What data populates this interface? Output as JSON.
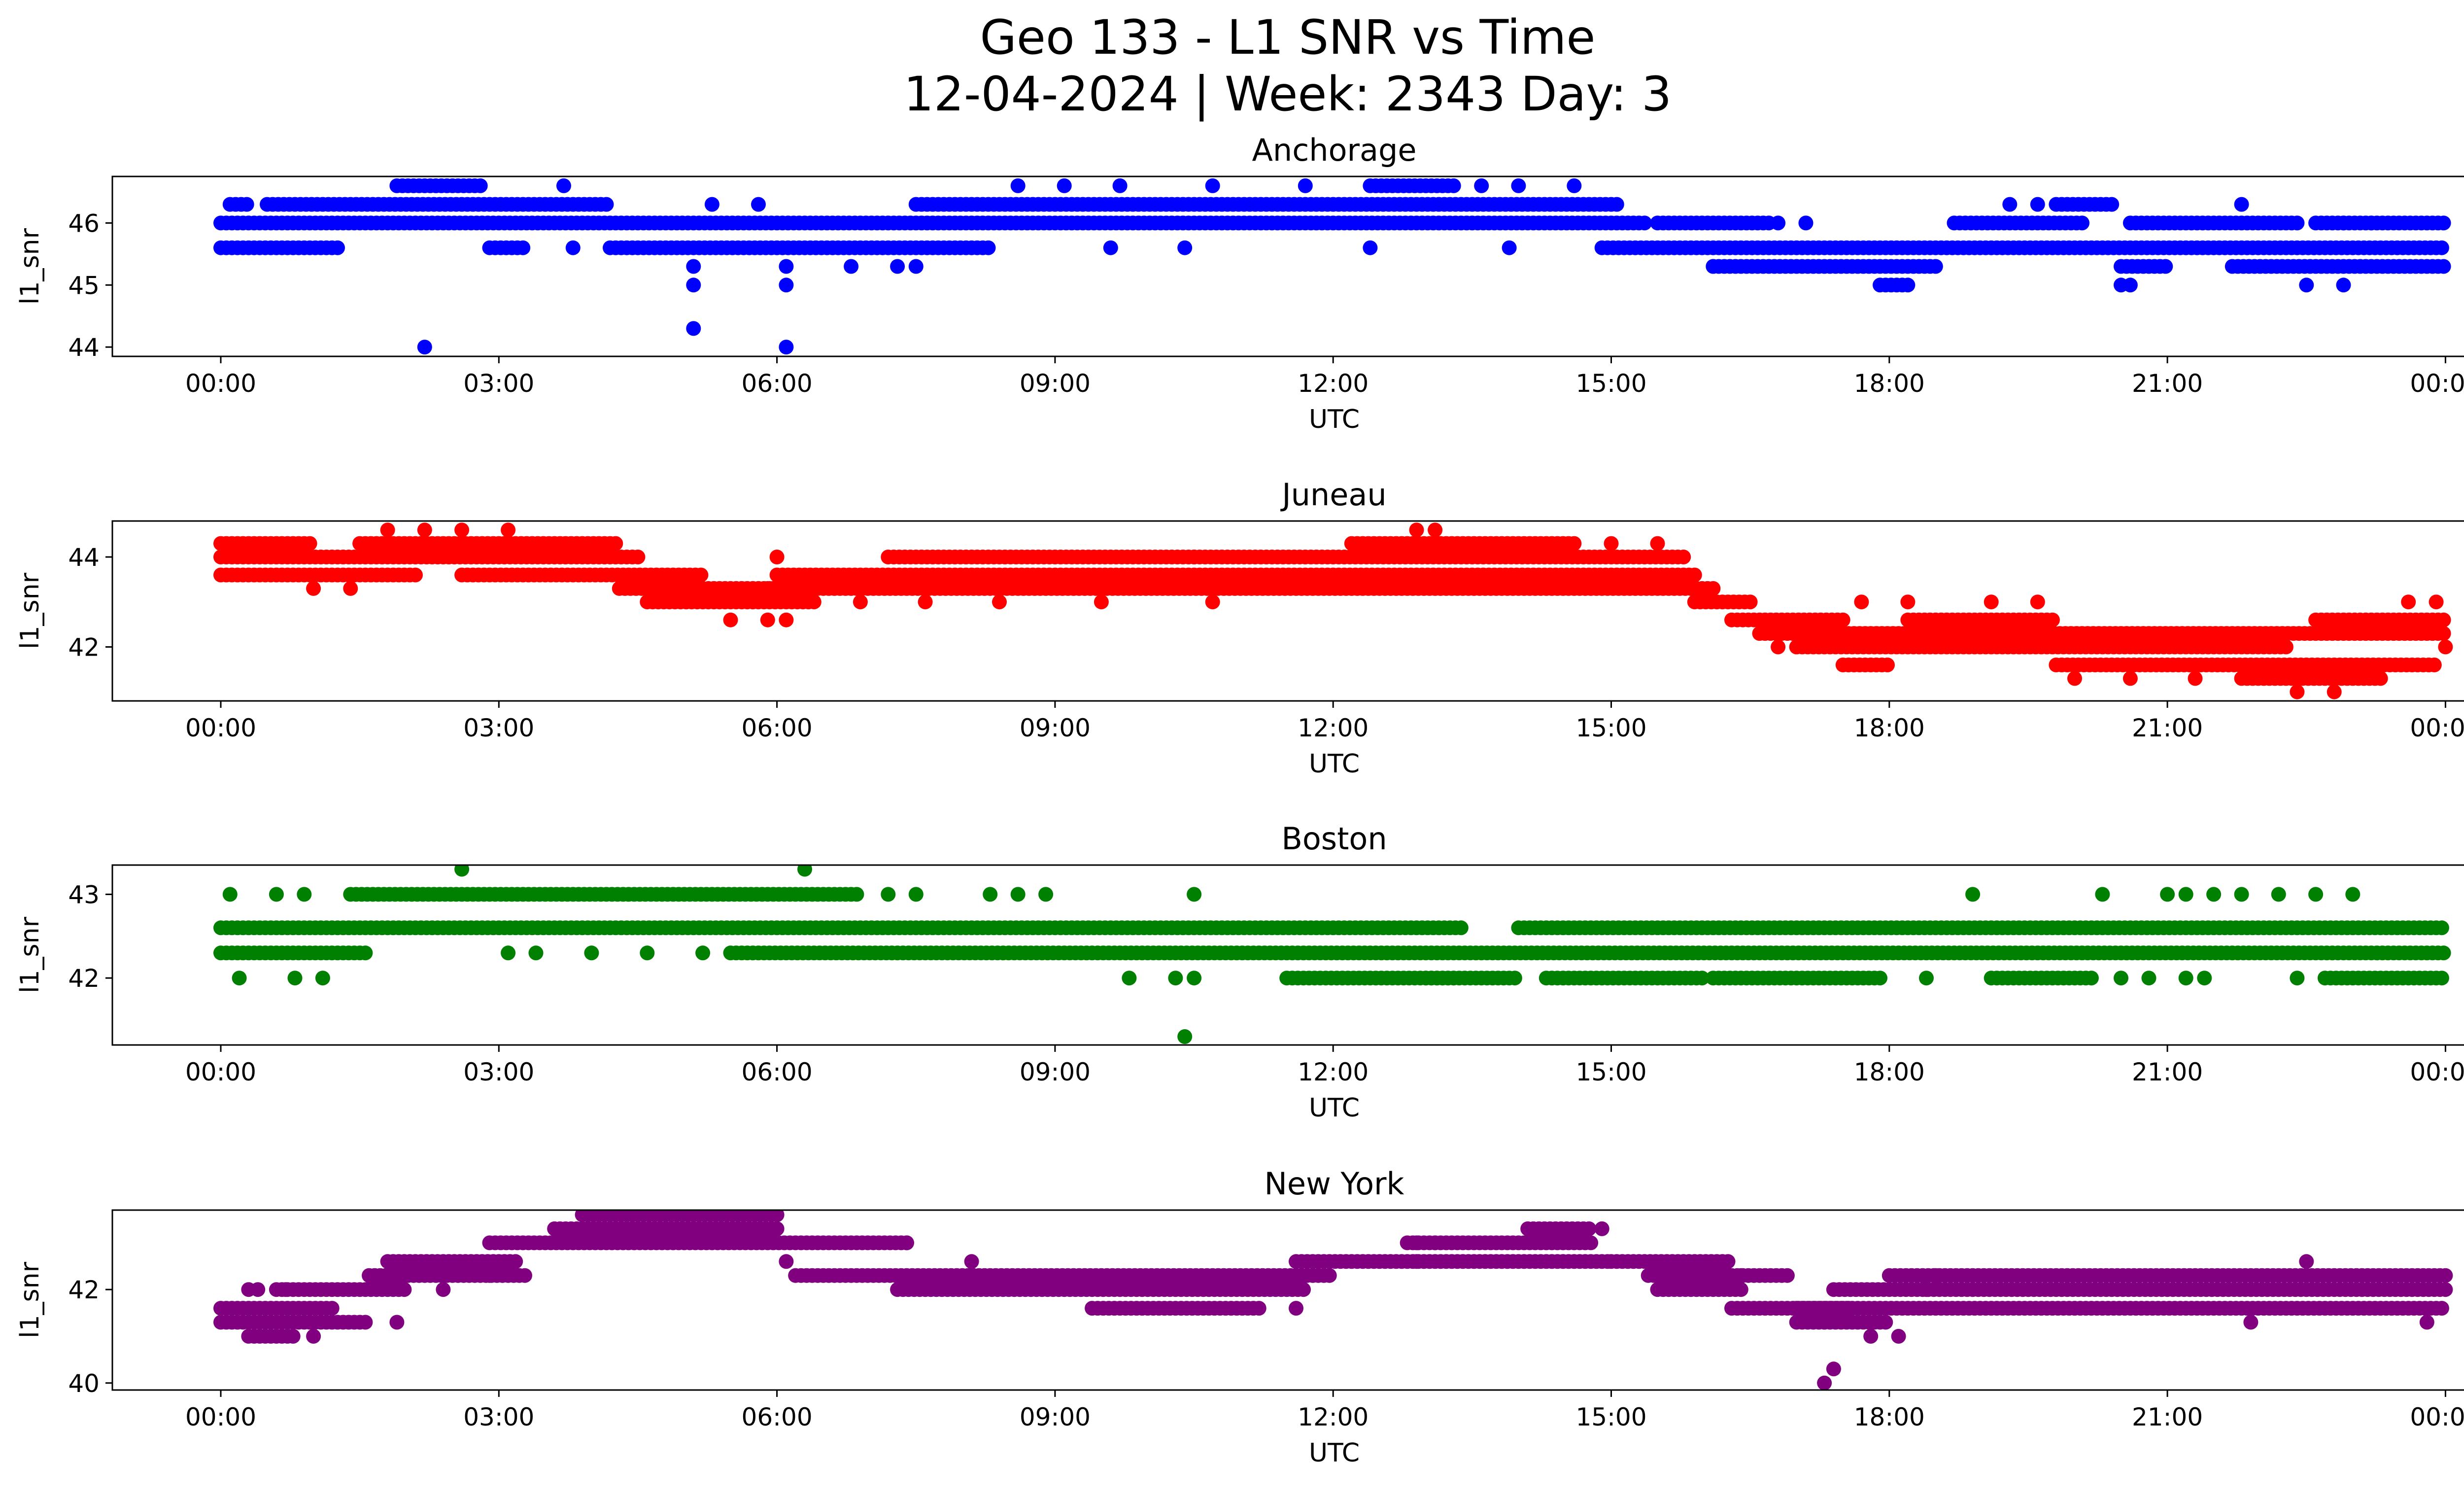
{
  "figure": {
    "title_line1": "Geo 133 - L1 SNR vs Time",
    "title_line2": "12-04-2024 | Week: 2343 Day: 3"
  },
  "chart_data": [
    {
      "type": "scatter",
      "title": "Anchorage",
      "xlabel": "UTC",
      "ylabel": "l1_snr",
      "color": "#0000ff",
      "xlim_hours": [
        -0.4,
        26.0
      ],
      "ylim": [
        43.85,
        46.75
      ],
      "yticks": [
        44,
        45,
        46
      ],
      "xtick_labels": [
        "00:00",
        "03:00",
        "06:00",
        "09:00",
        "12:00",
        "15:00",
        "18:00",
        "21:00",
        "00:00"
      ],
      "levels": [
        44.0,
        45.0,
        45.3,
        45.6,
        46.0,
        46.3,
        46.6
      ],
      "bands": [
        {
          "level": 45.6,
          "segments": [
            [
              0,
              1.3
            ],
            [
              2.9,
              3.3
            ],
            [
              4.2,
              8.3
            ],
            [
              14.9,
              24.0
            ]
          ]
        },
        {
          "level": 46.0,
          "segments": [
            [
              0,
              15.4
            ],
            [
              15.5,
              16.7
            ],
            [
              18.7,
              20.1
            ],
            [
              20.6,
              22.4
            ],
            [
              22.6,
              24.0
            ]
          ]
        },
        {
          "level": 46.3,
          "segments": [
            [
              0.1,
              0.3
            ],
            [
              0.5,
              4.2
            ],
            [
              7.5,
              15.1
            ],
            [
              19.8,
              20.4
            ]
          ]
        },
        {
          "level": 45.3,
          "segments": [
            [
              16.1,
              18.5
            ],
            [
              20.5,
              21.0
            ],
            [
              21.7,
              24.0
            ]
          ]
        },
        {
          "level": 46.6,
          "segments": [
            [
              1.9,
              2.8
            ],
            [
              12.4,
              13.3
            ]
          ]
        },
        {
          "level": 45.0,
          "segments": [
            [
              17.9,
              18.2
            ]
          ]
        }
      ],
      "points": [
        [
          2.2,
          44.0
        ],
        [
          5.1,
          44.3
        ],
        [
          6.1,
          44.0
        ],
        [
          5.1,
          45.0
        ],
        [
          6.1,
          45.0
        ],
        [
          5.1,
          45.3
        ],
        [
          6.1,
          45.3
        ],
        [
          6.8,
          45.3
        ],
        [
          7.3,
          45.3
        ],
        [
          7.5,
          45.3
        ],
        [
          3.7,
          46.6
        ],
        [
          8.6,
          46.6
        ],
        [
          9.1,
          46.6
        ],
        [
          9.7,
          46.6
        ],
        [
          10.7,
          46.6
        ],
        [
          11.7,
          46.6
        ],
        [
          13.6,
          46.6
        ],
        [
          14.0,
          46.6
        ],
        [
          14.6,
          46.6
        ],
        [
          5.3,
          46.3
        ],
        [
          5.8,
          46.3
        ],
        [
          3.8,
          45.6
        ],
        [
          9.6,
          45.6
        ],
        [
          10.4,
          45.6
        ],
        [
          12.4,
          45.6
        ],
        [
          13.9,
          45.6
        ],
        [
          16.1,
          45.3
        ],
        [
          16.8,
          46.0
        ],
        [
          17.1,
          46.0
        ],
        [
          19.3,
          46.3
        ],
        [
          19.6,
          46.3
        ],
        [
          21.8,
          46.3
        ],
        [
          22.5,
          45.0
        ],
        [
          22.9,
          45.0
        ],
        [
          22.9,
          46.0
        ],
        [
          23.2,
          46.0
        ],
        [
          20.5,
          45.0
        ],
        [
          20.6,
          45.0
        ]
      ]
    },
    {
      "type": "scatter",
      "title": "Juneau",
      "xlabel": "UTC",
      "ylabel": "l1_snr",
      "color": "#ff0000",
      "xlim_hours": [
        -0.4,
        26.0
      ],
      "ylim": [
        40.8,
        44.8
      ],
      "yticks": [
        42,
        44
      ],
      "xtick_labels": [
        "00:00",
        "03:00",
        "06:00",
        "09:00",
        "12:00",
        "15:00",
        "18:00",
        "21:00",
        "00:00"
      ],
      "levels": [
        41.0,
        41.3,
        41.6,
        42.0,
        42.3,
        42.6,
        43.0,
        43.3,
        43.6,
        44.0,
        44.3,
        44.6
      ],
      "bands": [
        {
          "level": 44.3,
          "segments": [
            [
              0,
              1.0
            ],
            [
              1.5,
              4.3
            ],
            [
              12.2,
              14.6
            ]
          ]
        },
        {
          "level": 44.0,
          "segments": [
            [
              0,
              4.5
            ],
            [
              7.2,
              15.8
            ]
          ]
        },
        {
          "level": 43.6,
          "segments": [
            [
              0,
              2.1
            ],
            [
              2.6,
              5.2
            ],
            [
              6.0,
              15.9
            ]
          ]
        },
        {
          "level": 43.3,
          "segments": [
            [
              4.3,
              6.1
            ],
            [
              5.9,
              16.1
            ]
          ]
        },
        {
          "level": 43.0,
          "segments": [
            [
              4.6,
              6.4
            ],
            [
              15.9,
              16.5
            ]
          ]
        },
        {
          "level": 42.6,
          "segments": [
            [
              16.3,
              17.5
            ],
            [
              18.2,
              19.8
            ],
            [
              22.6,
              24.0
            ]
          ]
        },
        {
          "level": 42.3,
          "segments": [
            [
              16.6,
              24.0
            ]
          ]
        },
        {
          "level": 42.0,
          "segments": [
            [
              17.0,
              22.3
            ]
          ]
        },
        {
          "level": 41.6,
          "segments": [
            [
              17.5,
              18.0
            ],
            [
              19.8,
              23.9
            ]
          ]
        },
        {
          "level": 41.3,
          "segments": [
            [
              21.8,
              23.3
            ]
          ]
        }
      ],
      "points": [
        [
          1.8,
          44.6
        ],
        [
          2.2,
          44.6
        ],
        [
          2.6,
          44.6
        ],
        [
          3.1,
          44.6
        ],
        [
          12.9,
          44.6
        ],
        [
          13.1,
          44.6
        ],
        [
          6.0,
          44.0
        ],
        [
          10.5,
          44.0
        ],
        [
          5.5,
          42.6
        ],
        [
          5.9,
          42.6
        ],
        [
          6.1,
          42.6
        ],
        [
          6.9,
          43.0
        ],
        [
          7.6,
          43.0
        ],
        [
          8.4,
          43.0
        ],
        [
          9.5,
          43.0
        ],
        [
          10.7,
          43.0
        ],
        [
          17.7,
          43.0
        ],
        [
          18.2,
          43.0
        ],
        [
          19.1,
          43.0
        ],
        [
          19.6,
          43.0
        ],
        [
          16.8,
          42.0
        ],
        [
          17.0,
          42.0
        ],
        [
          22.4,
          41.0
        ],
        [
          22.8,
          41.0
        ],
        [
          20.0,
          41.3
        ],
        [
          20.6,
          41.3
        ],
        [
          21.3,
          41.3
        ],
        [
          15.0,
          44.3
        ],
        [
          15.5,
          44.3
        ],
        [
          23.6,
          43.0
        ],
        [
          23.9,
          43.0
        ],
        [
          24.0,
          42.0
        ],
        [
          1.0,
          43.3
        ],
        [
          1.4,
          43.3
        ]
      ]
    },
    {
      "type": "scatter",
      "title": "Boston",
      "xlabel": "UTC",
      "ylabel": "l1_snr",
      "color": "#008000",
      "xlim_hours": [
        -0.4,
        26.0
      ],
      "ylim": [
        41.2,
        43.35
      ],
      "yticks": [
        42,
        43
      ],
      "xtick_labels": [
        "00:00",
        "03:00",
        "06:00",
        "09:00",
        "12:00",
        "15:00",
        "18:00",
        "21:00",
        "00:00"
      ],
      "levels": [
        41.3,
        42.0,
        42.3,
        42.6,
        43.0,
        43.3
      ],
      "bands": [
        {
          "level": 42.6,
          "segments": [
            [
              0,
              13.4
            ],
            [
              14.0,
              24.0
            ]
          ]
        },
        {
          "level": 42.3,
          "segments": [
            [
              0,
              1.6
            ],
            [
              5.5,
              24.0
            ]
          ]
        },
        {
          "level": 43.0,
          "segments": [
            [
              1.4,
              6.9
            ]
          ]
        },
        {
          "level": 42.0,
          "segments": [
            [
              11.5,
              13.3
            ],
            [
              13.0,
              14.0
            ],
            [
              14.3,
              16.0
            ],
            [
              16.1,
              17.9
            ],
            [
              19.1,
              20.2
            ],
            [
              22.7,
              24.0
            ]
          ]
        }
      ],
      "points": [
        [
          2.6,
          43.3
        ],
        [
          6.3,
          43.3
        ],
        [
          10.4,
          41.3
        ],
        [
          0.1,
          43.0
        ],
        [
          0.6,
          43.0
        ],
        [
          0.9,
          43.0
        ],
        [
          7.2,
          43.0
        ],
        [
          7.5,
          43.0
        ],
        [
          8.3,
          43.0
        ],
        [
          8.6,
          43.0
        ],
        [
          8.9,
          43.0
        ],
        [
          10.5,
          43.0
        ],
        [
          18.9,
          43.0
        ],
        [
          20.3,
          43.0
        ],
        [
          21.0,
          43.0
        ],
        [
          21.2,
          43.0
        ],
        [
          21.8,
          43.0
        ],
        [
          22.2,
          43.0
        ],
        [
          22.6,
          43.0
        ],
        [
          23.0,
          43.0
        ],
        [
          0.2,
          42.0
        ],
        [
          0.8,
          42.0
        ],
        [
          1.1,
          42.0
        ],
        [
          9.8,
          42.0
        ],
        [
          10.3,
          42.0
        ],
        [
          10.5,
          42.0
        ],
        [
          18.4,
          42.0
        ],
        [
          20.5,
          42.0
        ],
        [
          20.8,
          42.0
        ],
        [
          21.4,
          42.0
        ],
        [
          22.4,
          42.0
        ],
        [
          3.1,
          42.3
        ],
        [
          3.4,
          42.3
        ],
        [
          4.0,
          42.3
        ],
        [
          4.6,
          42.3
        ],
        [
          5.2,
          42.3
        ],
        [
          21.5,
          43.0
        ],
        [
          21.2,
          42.0
        ]
      ]
    },
    {
      "type": "scatter",
      "title": "New York",
      "xlabel": "UTC",
      "ylabel": "l1_snr",
      "color": "#800080",
      "xlim_hours": [
        -0.4,
        26.0
      ],
      "ylim": [
        39.85,
        43.7
      ],
      "yticks": [
        40,
        42
      ],
      "xtick_labels": [
        "00:00",
        "03:00",
        "06:00",
        "09:00",
        "12:00",
        "15:00",
        "18:00",
        "21:00",
        "00:00"
      ],
      "levels": [
        40.0,
        40.3,
        41.0,
        41.3,
        41.6,
        42.0,
        42.3,
        42.6,
        43.0,
        43.3,
        43.6
      ],
      "bands": [
        {
          "level": 41.6,
          "segments": [
            [
              0,
              1.2
            ],
            [
              9.4,
              11.2
            ],
            [
              16.3,
              17.6
            ],
            [
              17.0,
              24.0
            ]
          ]
        },
        {
          "level": 41.3,
          "segments": [
            [
              0,
              1.6
            ],
            [
              17.0,
              18.0
            ]
          ]
        },
        {
          "level": 42.0,
          "segments": [
            [
              0.6,
              2.0
            ],
            [
              7.3,
              11.7
            ],
            [
              15.5,
              16.4
            ],
            [
              17.4,
              24.0
            ]
          ]
        },
        {
          "level": 42.3,
          "segments": [
            [
              1.6,
              3.3
            ],
            [
              6.2,
              12.0
            ],
            [
              15.4,
              16.9
            ],
            [
              18.0,
              24.0
            ]
          ]
        },
        {
          "level": 42.6,
          "segments": [
            [
              1.8,
              3.2
            ],
            [
              11.6,
              15.0
            ],
            [
              15.0,
              16.3
            ]
          ]
        },
        {
          "level": 43.0,
          "segments": [
            [
              2.9,
              7.4
            ],
            [
              12.8,
              14.8
            ]
          ]
        },
        {
          "level": 43.3,
          "segments": [
            [
              3.6,
              6.0
            ],
            [
              14.1,
              14.8
            ]
          ]
        },
        {
          "level": 43.6,
          "segments": [
            [
              3.9,
              6.0
            ]
          ]
        },
        {
          "level": 41.0,
          "segments": [
            [
              0.3,
              0.8
            ]
          ]
        }
      ],
      "points": [
        [
          17.3,
          40.0
        ],
        [
          17.4,
          40.3
        ],
        [
          17.8,
          41.0
        ],
        [
          18.1,
          41.0
        ],
        [
          1.0,
          41.0
        ],
        [
          1.9,
          41.3
        ],
        [
          2.0,
          42.3
        ],
        [
          2.4,
          42.0
        ],
        [
          2.9,
          42.3
        ],
        [
          6.1,
          42.6
        ],
        [
          7.4,
          43.0
        ],
        [
          8.1,
          42.6
        ],
        [
          11.6,
          41.6
        ],
        [
          12.9,
          43.0
        ],
        [
          14.9,
          43.3
        ],
        [
          16.4,
          42.3
        ],
        [
          17.3,
          41.3
        ],
        [
          18.4,
          42.0
        ],
        [
          18.5,
          42.3
        ],
        [
          0.3,
          42.0
        ],
        [
          0.4,
          42.0
        ],
        [
          0.7,
          42.0
        ],
        [
          13.1,
          43.0
        ],
        [
          12.9,
          42.6
        ],
        [
          23.8,
          41.3
        ],
        [
          22.5,
          42.6
        ],
        [
          21.9,
          41.3
        ]
      ]
    }
  ]
}
